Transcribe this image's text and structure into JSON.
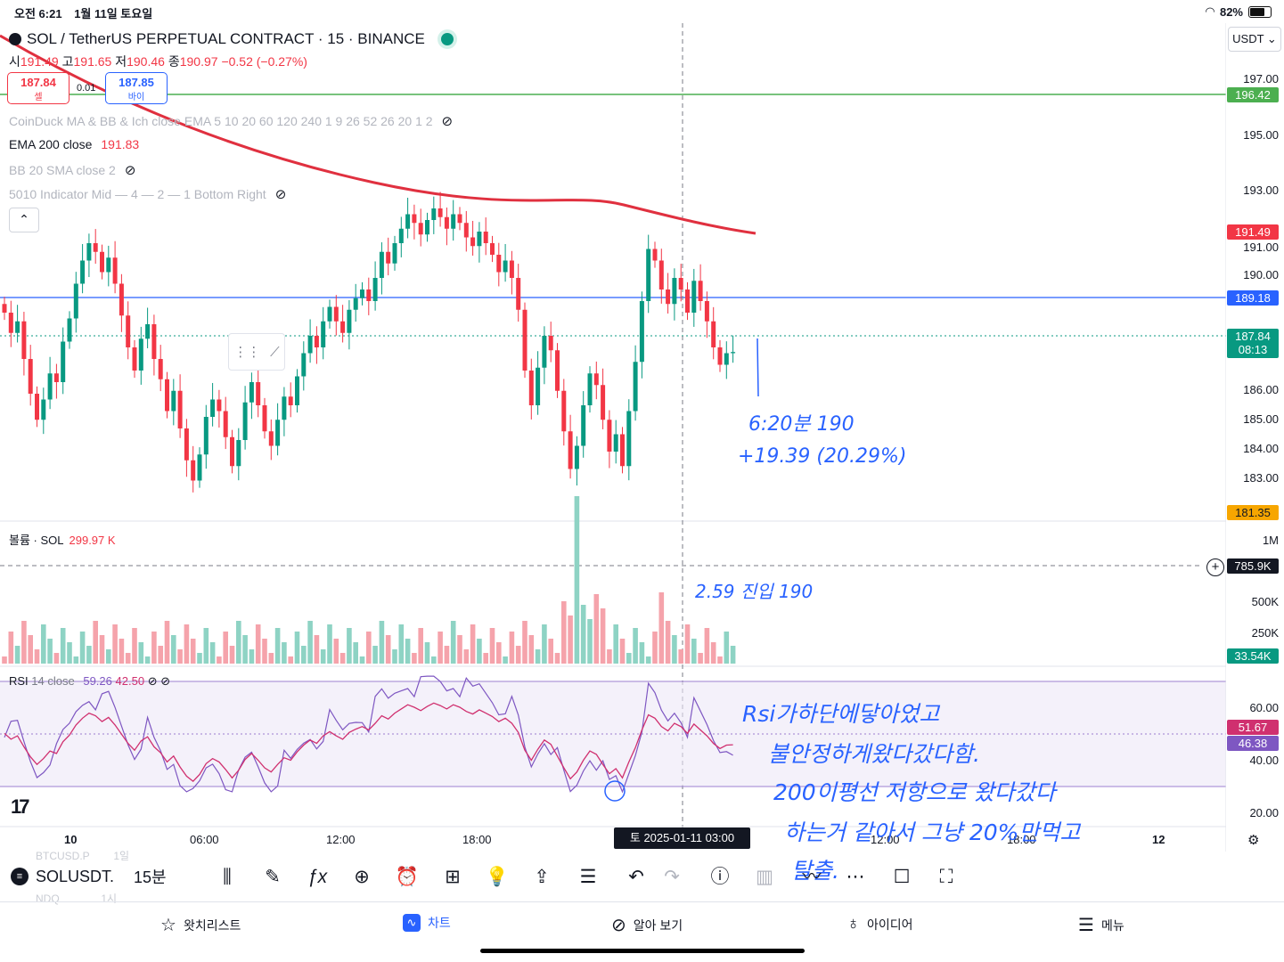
{
  "status_bar": {
    "time": "오전 6:21",
    "date": "1월 11일 토요일",
    "battery": "82%",
    "battery_level": 0.82
  },
  "header": {
    "symbol": "SOL / TetherUS PERPETUAL CONTRACT · 15 · BINANCE",
    "ohlc": {
      "o_label": "시",
      "o": "191.49",
      "h_label": "고",
      "h": "191.65",
      "l_label": "저",
      "l": "190.46",
      "c_label": "종",
      "c": "190.97",
      "change": "−0.52 (−0.27%)"
    },
    "sell": {
      "price": "187.84",
      "label": "셀"
    },
    "spread": "0.01",
    "buy": {
      "price": "187.85",
      "label": "바이"
    },
    "currency": "USDT"
  },
  "indicators": [
    {
      "name": "CoinDuck MA & BB & Ich close EMA 5 10 20 60 120 240 1 9 26 52 26 20 1 2",
      "value": "",
      "hidden": true
    },
    {
      "name": "EMA 200 close",
      "value": "191.83",
      "hidden": false
    },
    {
      "name": "BB 20 SMA close 2",
      "value": "",
      "hidden": true
    },
    {
      "name": "5010 Indicator Mid — 4 — 2 — 1 Bottom Right",
      "value": "",
      "hidden": true
    }
  ],
  "price_axis": {
    "ticks": [
      "197.00",
      "195.00",
      "193.00",
      "191.00",
      "190.00",
      "186.00",
      "185.00",
      "184.00",
      "183.00",
      "1M",
      "500K",
      "250K",
      "60.00",
      "40.00",
      "20.00"
    ],
    "tags": {
      "green_line": "196.42",
      "ema": "191.49",
      "blue_line": "189.18",
      "last_price": "187.84",
      "countdown": "08:13",
      "low": "181.35",
      "volume_cross": "785.9K",
      "volume_last": "33.54K",
      "rsi": "51.67",
      "rsi_ma": "46.38"
    }
  },
  "time_axis": {
    "ticks": [
      "10",
      "06:00",
      "12:00",
      "18:00",
      "12:00",
      "18:00",
      "12"
    ],
    "crosshair": "토 2025-01-11   03:00"
  },
  "volume": {
    "label": "볼륨 · SOL",
    "value": "299.97 K"
  },
  "rsi": {
    "label": "RSI",
    "params": "14 close",
    "v1": "59.26",
    "v2": "42.50"
  },
  "annotations": {
    "line1": "6:20분 190",
    "line2": "+19.39 (20.29%)",
    "volume_note": "2.59 진입 190",
    "rsi_note_1": "Rsi가하단에닿아었고",
    "rsi_note_2": "불안정하게왔다갔다함.",
    "rsi_note_3": "200이평선 저항으로 왔다갔다",
    "rsi_note_4": "하는거 같아서 그냥 20%만먹고",
    "rsi_note_5": "탈출."
  },
  "toolbar": {
    "symbol": "SOLUSDT.",
    "interval": "15분",
    "ghost_top": "BTCUSD.P",
    "ghost_top_interval": "1일",
    "ghost_bottom": "NDQ",
    "ghost_bottom_interval": "1시"
  },
  "bottom_nav": [
    {
      "label": "왓치리스트",
      "icon": "star-icon"
    },
    {
      "label": "차트",
      "icon": "chart-icon",
      "active": true
    },
    {
      "label": "알아 보기",
      "icon": "compass-icon"
    },
    {
      "label": "아이디어",
      "icon": "bulb-icon"
    },
    {
      "label": "메뉴",
      "icon": "menu-icon"
    }
  ],
  "colors": {
    "bull": "#089981",
    "bear": "#f23645",
    "ema": "#e0303f",
    "blue": "#2962ff",
    "green_line": "#4caf50",
    "rsi": "#7e57c2",
    "rsi_ma": "#d0306f"
  }
}
